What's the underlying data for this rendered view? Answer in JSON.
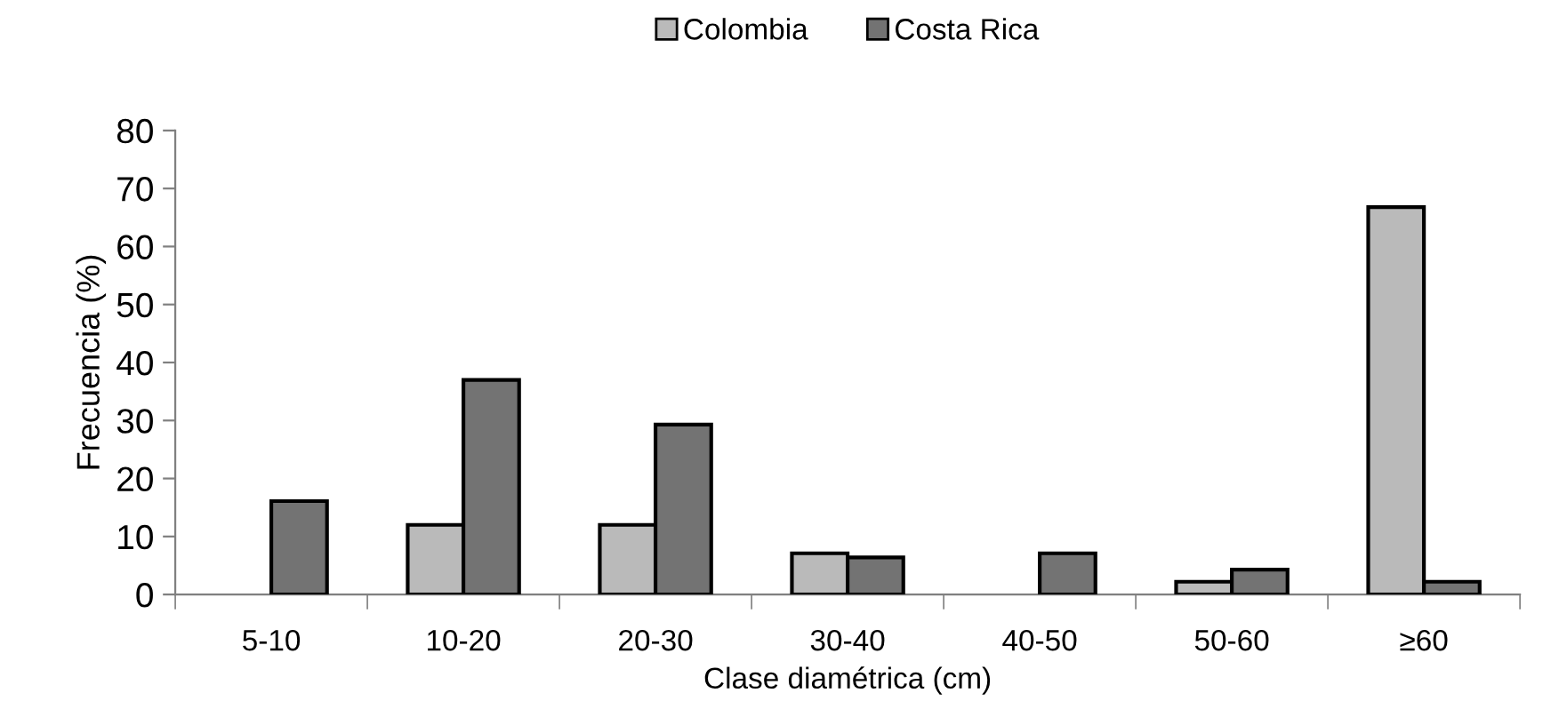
{
  "chart_data": {
    "type": "bar",
    "xlabel": "Clase diamétrica (cm)",
    "ylabel": "Frecuencia (%)",
    "categories": [
      "5-10",
      "10-20",
      "20-30",
      "30-40",
      "40-50",
      "50-60",
      "≥60"
    ],
    "series": [
      {
        "name": "Colombia",
        "color": "#bababa",
        "values": [
          null,
          12.0,
          12.0,
          7.1,
          null,
          2.2,
          66.8
        ]
      },
      {
        "name": "Costa Rica",
        "color": "#737373",
        "values": [
          16.1,
          37.0,
          29.3,
          6.4,
          7.1,
          4.3,
          2.2
        ]
      }
    ],
    "ylim": [
      0,
      80
    ],
    "yticks": [
      0,
      10,
      20,
      30,
      40,
      50,
      60,
      70,
      80
    ],
    "grid": false,
    "legend": "top"
  }
}
